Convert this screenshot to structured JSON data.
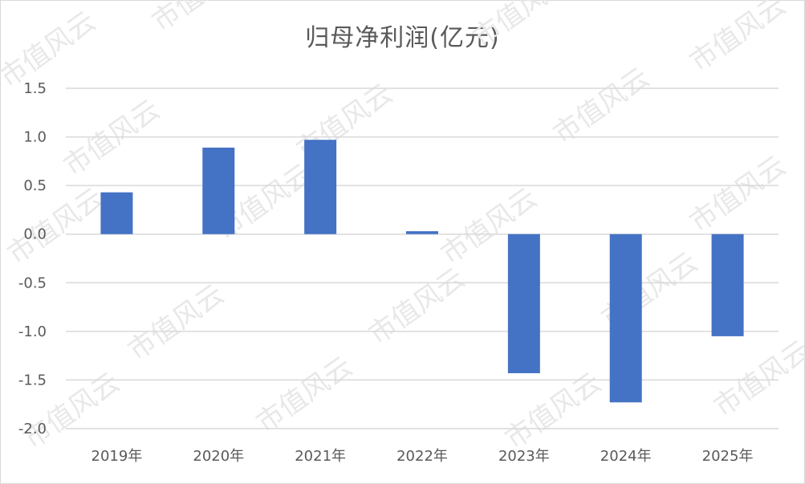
{
  "chart_data": {
    "type": "bar",
    "title": "归母净利润(亿元)",
    "xlabel": "",
    "ylabel": "",
    "categories": [
      "2019年",
      "2020年",
      "2021年",
      "2022年",
      "2023年",
      "2024年",
      "2025年"
    ],
    "values": [
      0.43,
      0.89,
      0.97,
      0.03,
      -1.43,
      -1.73,
      -1.05
    ],
    "ylim": [
      -2.0,
      1.5
    ],
    "yticks": [
      "1.5",
      "1.0",
      "0.5",
      "0.0",
      "-0.5",
      "-1.0",
      "-1.5",
      "-2.0"
    ],
    "grid": true,
    "legend": "none",
    "bar_color": "#4472C4",
    "grid_color": "#d9d9d9"
  },
  "watermark": "市值风云"
}
